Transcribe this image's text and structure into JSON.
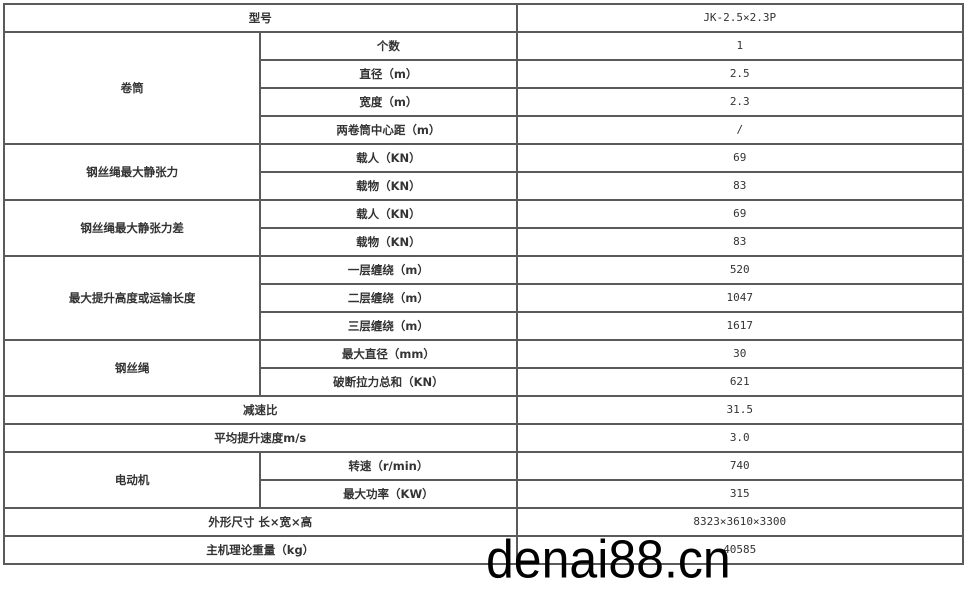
{
  "watermark": "denai88.cn",
  "header": {
    "label": "型号",
    "value": "JK-2.5×2.3P"
  },
  "groups": {
    "drum": {
      "label": "卷筒",
      "rows": [
        {
          "label": "个数",
          "value": "1"
        },
        {
          "label": "直径（m）",
          "value": "2.5"
        },
        {
          "label": "宽度（m）",
          "value": "2.3"
        },
        {
          "label": "两卷筒中心距（m）",
          "value": "/"
        }
      ]
    },
    "tension": {
      "label": "钢丝绳最大静张力",
      "rows": [
        {
          "label": "载人（KN）",
          "value": "69"
        },
        {
          "label": "载物（KN）",
          "value": "83"
        }
      ]
    },
    "tension_diff": {
      "label": "钢丝绳最大静张力差",
      "rows": [
        {
          "label": "载人（KN）",
          "value": "69"
        },
        {
          "label": "载物（KN）",
          "value": "83"
        }
      ]
    },
    "height": {
      "label": "最大提升高度或运输长度",
      "rows": [
        {
          "label": "一层缠绕（m）",
          "value": "520"
        },
        {
          "label": "二层缠绕（m）",
          "value": "1047"
        },
        {
          "label": "三层缠绕（m）",
          "value": "1617"
        }
      ]
    },
    "rope": {
      "label": "钢丝绳",
      "rows": [
        {
          "label": "最大直径（mm）",
          "value": "30"
        },
        {
          "label": "破断拉力总和（KN）",
          "value": "621"
        }
      ]
    },
    "ratio": {
      "label": "减速比",
      "value": "31.5"
    },
    "speed": {
      "label": "平均提升速度m/s",
      "value": "3.0"
    },
    "motor": {
      "label": "电动机",
      "rows": [
        {
          "label": "转速（r/min）",
          "value": "740"
        },
        {
          "label": "最大功率（KW）",
          "value": "315"
        }
      ]
    },
    "dimensions": {
      "label": "外形尺寸 长×宽×高",
      "value": "8323×3610×3300"
    },
    "weight": {
      "label": "主机理论重量（kg）",
      "value": "40585"
    }
  }
}
